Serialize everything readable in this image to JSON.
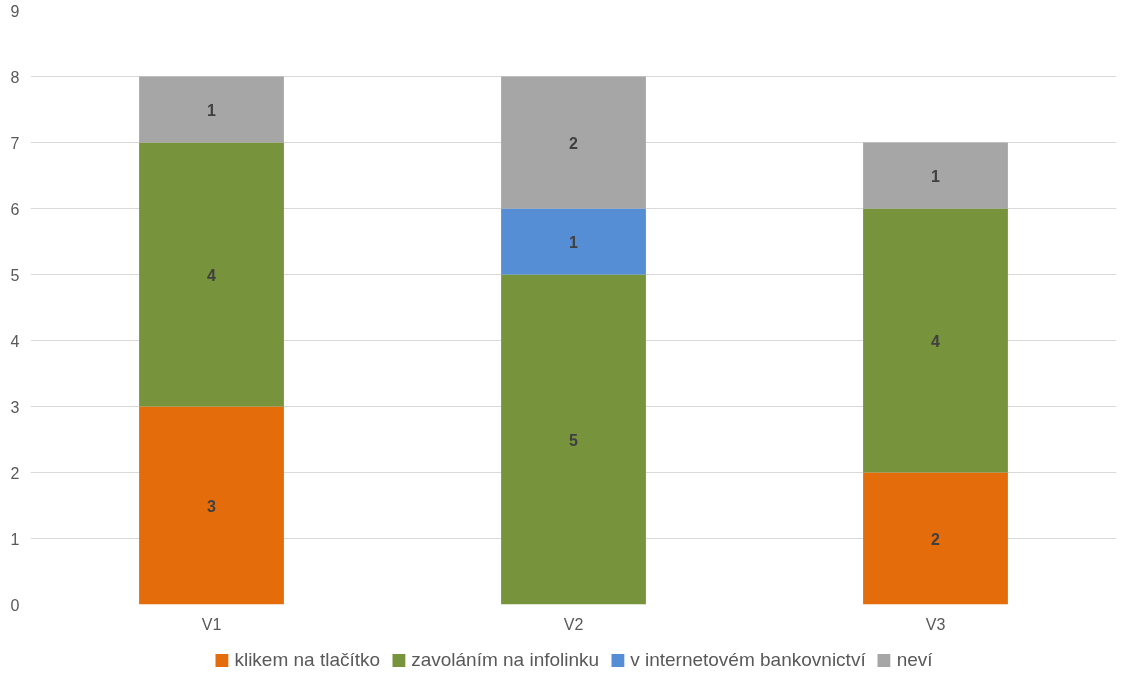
{
  "chart_data": {
    "type": "bar",
    "stacked": true,
    "categories": [
      "V1",
      "V2",
      "V3"
    ],
    "series": [
      {
        "name": "klikem na tlačítko",
        "color": "#e46c0a",
        "values": [
          3,
          null,
          2
        ]
      },
      {
        "name": "zavoláním na infolinku",
        "color": "#77933c",
        "values": [
          4,
          5,
          4
        ]
      },
      {
        "name": "v internetovém bankovnictví",
        "color": "#558ed5",
        "values": [
          null,
          1,
          null
        ]
      },
      {
        "name": "neví",
        "color": "#a6a6a6",
        "values": [
          1,
          2,
          1
        ]
      }
    ],
    "ylim": [
      0,
      9
    ],
    "yticks": [
      0,
      1,
      2,
      3,
      4,
      5,
      6,
      7,
      8,
      9
    ],
    "grid": "y",
    "legend": "bottom",
    "data_labels": true
  }
}
